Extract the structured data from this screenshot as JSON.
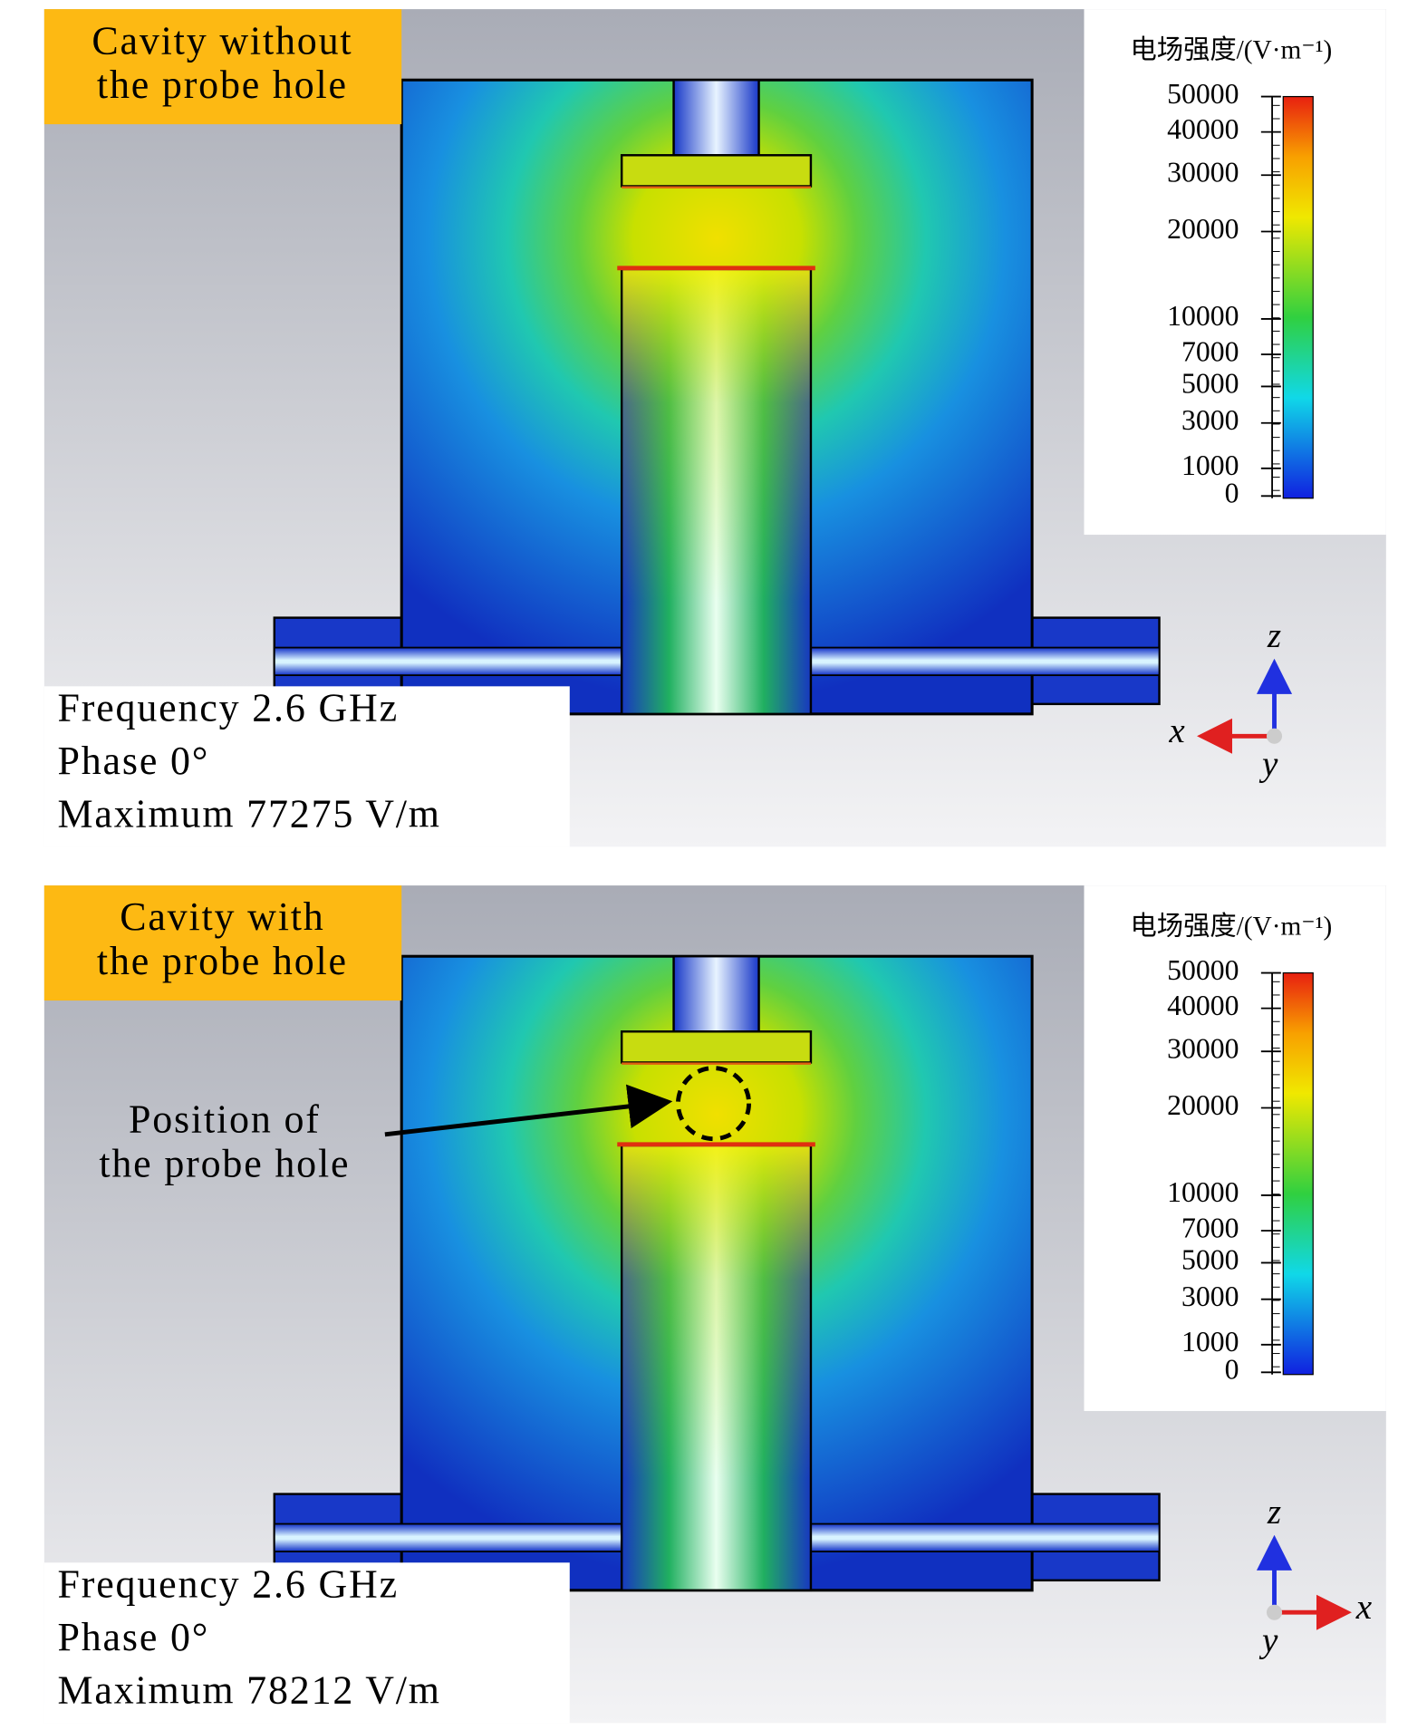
{
  "panels": [
    {
      "label": [
        "Cavity without",
        "the probe hole"
      ],
      "legend": {
        "title": "电场强度/(V·m⁻¹)",
        "ticks": [
          "50000",
          "40000",
          "30000",
          "20000",
          "10000",
          "7000",
          "5000",
          "3000",
          "1000",
          "0"
        ]
      },
      "info": [
        "Frequency 2.6 GHz",
        "Phase 0°",
        "Maximum  77275 V/m"
      ],
      "axes": {
        "x": "x",
        "y": "y",
        "z": "z"
      }
    },
    {
      "label": [
        "Cavity with",
        "the probe hole"
      ],
      "legend": {
        "title": "电场强度/(V·m⁻¹)",
        "ticks": [
          "50000",
          "40000",
          "30000",
          "20000",
          "10000",
          "7000",
          "5000",
          "3000",
          "1000",
          "0"
        ]
      },
      "info": [
        "Frequency 2.6 GHz",
        "Phase 0°",
        "Maximum  78212 V/m"
      ],
      "axes": {
        "x": "x",
        "y": "y",
        "z": "z"
      },
      "annotation": [
        "Position of",
        "the probe hole"
      ]
    }
  ]
}
